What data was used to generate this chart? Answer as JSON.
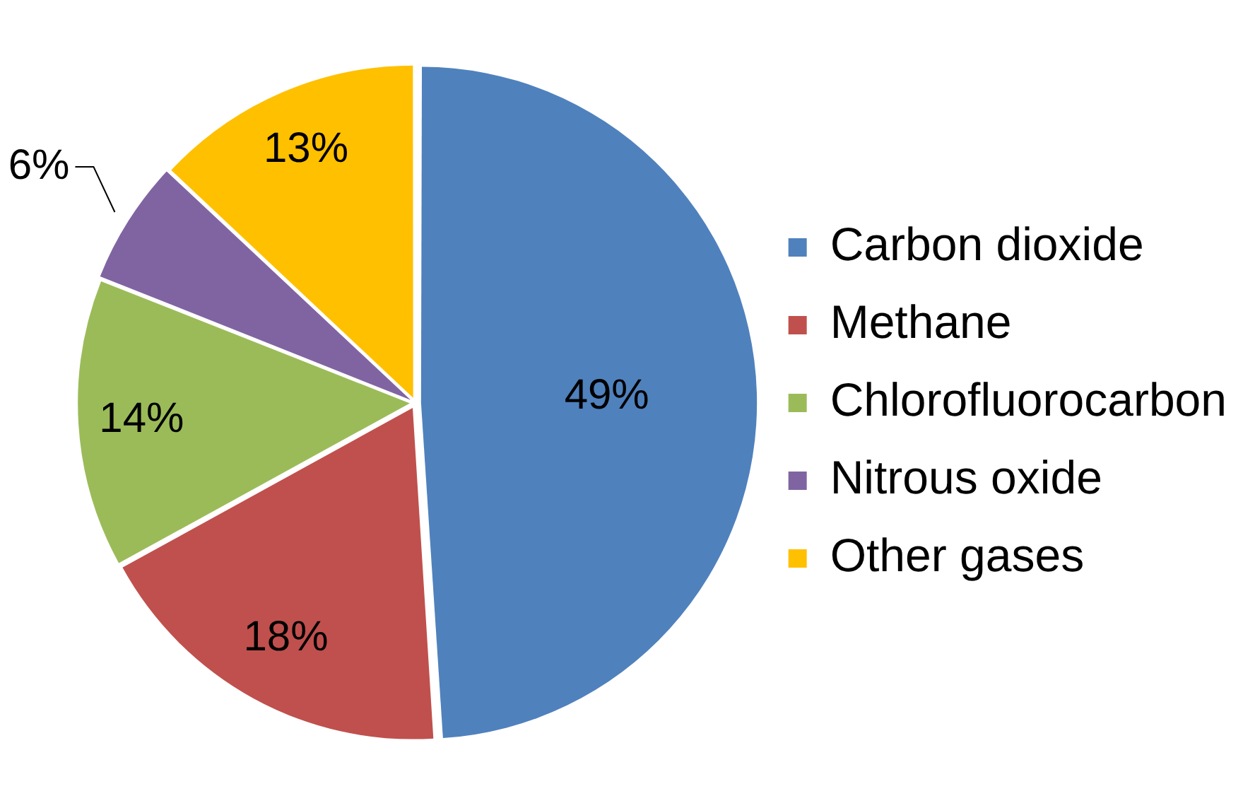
{
  "chart_data": {
    "type": "pie",
    "categories": [
      "Carbon dioxide",
      "Methane",
      "Chlorofluorocarbon",
      "Nitrous oxide",
      "Other gases"
    ],
    "values": [
      49,
      18,
      14,
      6,
      13
    ],
    "colors": [
      "#4f81bd",
      "#c0504d",
      "#9bbb59",
      "#8064a2",
      "#ffc000"
    ],
    "value_labels": [
      "49%",
      "18%",
      "14%",
      "6%",
      "13%"
    ],
    "legend": "right"
  }
}
